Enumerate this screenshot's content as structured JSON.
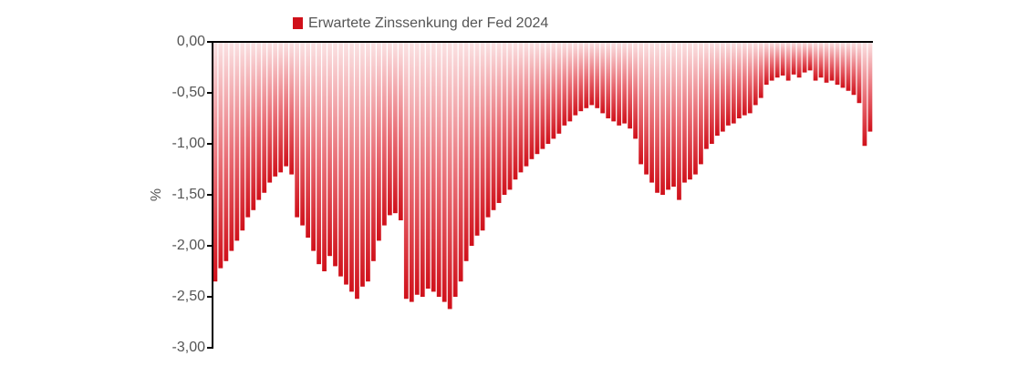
{
  "chart_data": {
    "type": "bar",
    "legend": "Erwartete Zinssenkung der Fed 2024",
    "ylabel": "%",
    "color": "#d0101a",
    "values": [
      -2.35,
      -2.22,
      -2.15,
      -2.05,
      -1.95,
      -1.85,
      -1.72,
      -1.65,
      -1.55,
      -1.48,
      -1.38,
      -1.32,
      -1.28,
      -1.22,
      -1.3,
      -1.72,
      -1.8,
      -1.92,
      -2.05,
      -2.18,
      -2.25,
      -2.1,
      -2.2,
      -2.3,
      -2.38,
      -2.45,
      -2.52,
      -2.4,
      -2.35,
      -2.15,
      -1.95,
      -1.8,
      -1.7,
      -1.68,
      -1.75,
      -2.52,
      -2.55,
      -2.48,
      -2.5,
      -2.42,
      -2.45,
      -2.5,
      -2.55,
      -2.62,
      -2.5,
      -2.35,
      -2.15,
      -2.0,
      -1.9,
      -1.85,
      -1.72,
      -1.65,
      -1.58,
      -1.5,
      -1.45,
      -1.35,
      -1.28,
      -1.22,
      -1.15,
      -1.1,
      -1.05,
      -1.0,
      -0.95,
      -0.9,
      -0.82,
      -0.78,
      -0.72,
      -0.68,
      -0.65,
      -0.62,
      -0.65,
      -0.7,
      -0.75,
      -0.78,
      -0.82,
      -0.8,
      -0.85,
      -0.95,
      -1.2,
      -1.3,
      -1.38,
      -1.48,
      -1.5,
      -1.45,
      -1.42,
      -1.55,
      -1.38,
      -1.35,
      -1.3,
      -1.2,
      -1.05,
      -1.0,
      -0.92,
      -0.88,
      -0.82,
      -0.8,
      -0.75,
      -0.72,
      -0.7,
      -0.62,
      -0.55,
      -0.42,
      -0.38,
      -0.35,
      -0.33,
      -0.38,
      -0.32,
      -0.35,
      -0.3,
      -0.28,
      -0.38,
      -0.35,
      -0.4,
      -0.38,
      -0.42,
      -0.45,
      -0.48,
      -0.52,
      -0.6,
      -1.02,
      -0.88
    ],
    "ylim": [
      -3,
      0
    ],
    "yticks": [
      {
        "value": 0,
        "label": "0,00"
      },
      {
        "value": -0.5,
        "label": "-0,50"
      },
      {
        "value": -1,
        "label": "-1,00"
      },
      {
        "value": -1.5,
        "label": "-1,50"
      },
      {
        "value": -2,
        "label": "-2,00"
      },
      {
        "value": -2.5,
        "label": "-2,50"
      },
      {
        "value": -3,
        "label": "-3,00"
      }
    ]
  }
}
